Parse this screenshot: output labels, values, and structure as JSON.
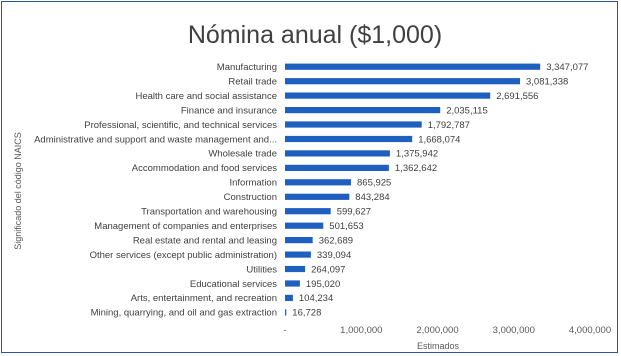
{
  "chart_data": {
    "type": "bar",
    "orientation": "horizontal",
    "title": "Nómina anual ($1,000)",
    "xlabel": "Estimados",
    "ylabel": "Significado del código NAICS",
    "xlim": [
      0,
      4000000
    ],
    "xticks": [
      {
        "value": 0,
        "label": "-"
      },
      {
        "value": 1000000,
        "label": "1,000,000"
      },
      {
        "value": 2000000,
        "label": "2,000,000"
      },
      {
        "value": 3000000,
        "label": "3,000,000"
      },
      {
        "value": 4000000,
        "label": "4,000,000"
      }
    ],
    "grid": false,
    "legend": "none",
    "bar_color": "#1f5fbf",
    "categories": [
      "Manufacturing",
      "Retail trade",
      "Health care and social assistance",
      "Finance and insurance",
      "Professional, scientific, and technical services",
      "Administrative and support and waste management and...",
      "Wholesale trade",
      "Accommodation and food services",
      "Information",
      "Construction",
      "Transportation and warehousing",
      "Management of companies and enterprises",
      "Real estate and rental and leasing",
      "Other services (except public administration)",
      "Utilities",
      "Educational services",
      "Arts, entertainment, and recreation",
      "Mining, quarrying, and oil and gas extraction"
    ],
    "values": [
      3347077,
      3081338,
      2691556,
      2035115,
      1792787,
      1668074,
      1375942,
      1362642,
      865925,
      843284,
      599627,
      501653,
      362689,
      339094,
      264097,
      195020,
      104234,
      16728
    ],
    "data_labels": [
      "3,347,077",
      "3,081,338",
      "2,691,556",
      "2,035,115",
      "1,792,787",
      "1,668,074",
      "1,375,942",
      "1,362,642",
      "865,925",
      "843,284",
      "599,627",
      "501,653",
      "362,689",
      "339,094",
      "264,097",
      "195,020",
      "104,234",
      "16,728"
    ]
  }
}
